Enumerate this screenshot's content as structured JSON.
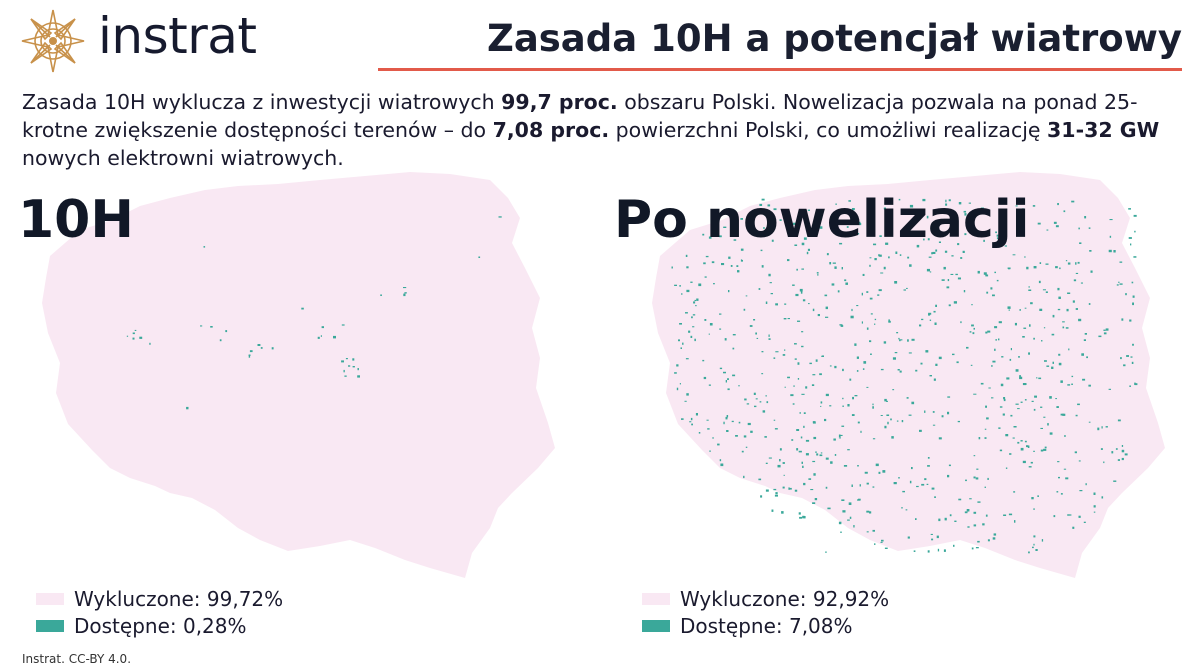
{
  "brand": {
    "name": "instrat",
    "logo": "compass-star-logo"
  },
  "title": "Zasada 10H a potencjał wiatrowy",
  "intro": {
    "p1": "Zasada 10H wyklucza z inwestycji wiatrowych ",
    "b1": "99,7 proc.",
    "p2": " obszaru Polski. Nowelizacja pozwala na ponad 25-krotne zwiększenie dostępności terenów – do ",
    "b2": "7,08 proc.",
    "p3": " powierzchni Polski, co umożliwi realizację ",
    "b3": "31-32 GW",
    "p4": " nowych elektrowni wiatrowych."
  },
  "maps": {
    "left": {
      "title": "10H",
      "available_fraction": 0.0028,
      "legend": {
        "excluded": "Wykluczone: 99,72%",
        "available": "Dostępne: 0,28%"
      }
    },
    "right": {
      "title": "Po nowelizacji",
      "available_fraction": 0.0708,
      "legend": {
        "excluded": "Wykluczone: 92,92%",
        "available": "Dostępne: 7,08%"
      }
    }
  },
  "colors": {
    "excluded": "#f9e8f3",
    "available": "#3aa89a",
    "accent": "#e25a4a",
    "logo": "#c8914a"
  },
  "footer": "Instrat. CC-BY 4.0."
}
